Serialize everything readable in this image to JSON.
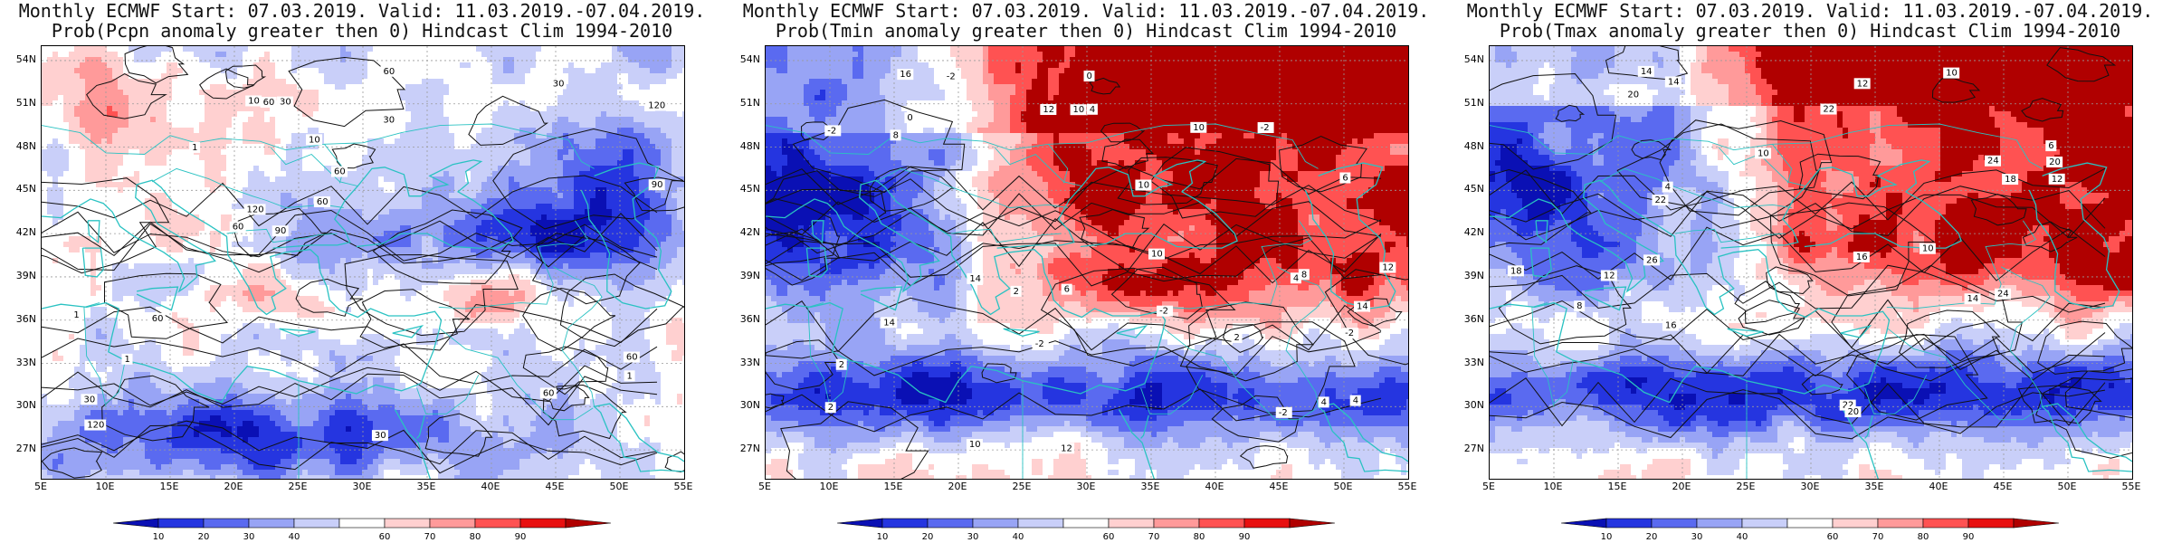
{
  "panels": [
    {
      "title_line1": "Monthly ECMWF Start: 07.03.2019. Valid: 11.03.2019.-07.04.2019.",
      "title_line2": "Prob(Pcpn anomaly greater then 0) Hindcast Clim 1994-2010",
      "contour_labels": [
        "90",
        "120",
        "120",
        "60",
        "60",
        "60",
        "30",
        "30",
        "60",
        "60",
        "120",
        "60",
        "90",
        "30",
        "60",
        "30",
        "30",
        "10",
        "10",
        "1",
        "1",
        "1",
        "1",
        "60"
      ],
      "field": "pcpn"
    },
    {
      "title_line1": "Monthly ECMWF Start: 07.03.2019. Valid: 11.03.2019.-07.04.2019.",
      "title_line2": "Prob(Tmin anomaly greater then 0) Hindcast Clim 1994-2010",
      "contour_labels": [
        "-2",
        "0",
        "-2",
        "2",
        "-2",
        "0",
        "2",
        "4",
        "-2",
        "-2",
        "4",
        "6",
        "2",
        "-2",
        "4",
        "2",
        "6",
        "8",
        "10",
        "12",
        "14",
        "10",
        "14",
        "10",
        "10",
        "12",
        "10",
        "8",
        "-2",
        "4",
        "12",
        "14",
        "16"
      ],
      "field": "tmin"
    },
    {
      "title_line1": "Monthly ECMWF Start: 07.03.2019. Valid: 11.03.2019.-07.04.2019.",
      "title_line2": "Prob(Tmax anomaly greater then 0) Hindcast Clim 1994-2010",
      "contour_labels": [
        "6",
        "8",
        "4",
        "10",
        "12",
        "14",
        "12",
        "10",
        "16",
        "12",
        "14",
        "16",
        "18",
        "20",
        "22",
        "20",
        "24",
        "22",
        "18",
        "22",
        "24",
        "26",
        "20",
        "14",
        "10"
      ],
      "field": "tmax"
    }
  ],
  "lat_ticks": [
    "54N",
    "51N",
    "48N",
    "45N",
    "42N",
    "39N",
    "36N",
    "33N",
    "30N",
    "27N"
  ],
  "lon_ticks": [
    "5E",
    "10E",
    "15E",
    "20E",
    "25E",
    "30E",
    "35E",
    "40E",
    "45E",
    "50E",
    "55E"
  ],
  "colorbar": {
    "labels": [
      "10",
      "20",
      "30",
      "40",
      "60",
      "70",
      "80",
      "90"
    ],
    "colors": [
      "#0a10b4",
      "#2535e0",
      "#5a6af0",
      "#98a4f5",
      "#c9cff9",
      "#ffffff",
      "#ffd0d0",
      "#ff9a9a",
      "#ff5252",
      "#e81010",
      "#b00000"
    ]
  }
}
